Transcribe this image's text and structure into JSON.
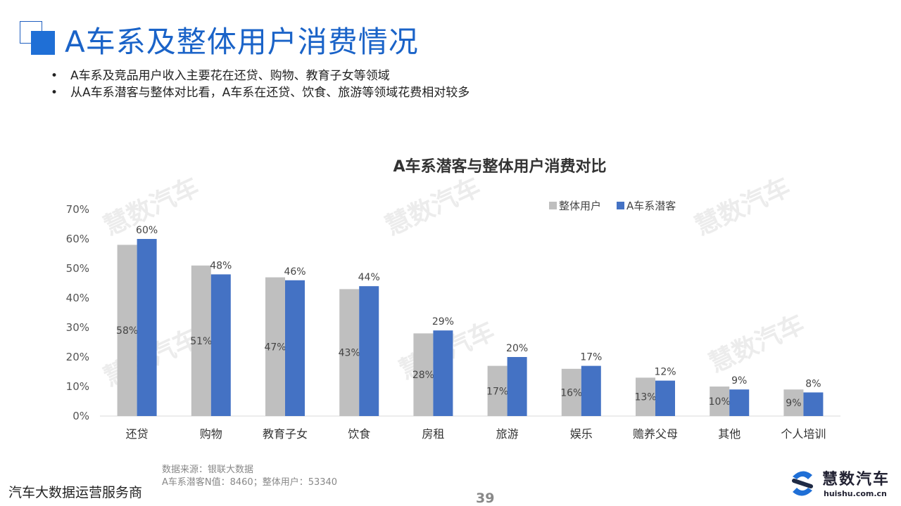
{
  "header": {
    "title": "A车系及整体用户消费情况"
  },
  "bullets": [
    "A车系及竞品用户收入主要花在还贷、购物、教育子女等领域",
    "从A车系潜客与整体对比看，A车系在还贷、饮食、旅游等领域花费相对较多"
  ],
  "bullet_symbol": "•",
  "watermark_text": "慧数汽车",
  "chart_data": {
    "type": "bar",
    "title": "A车系潜客与整体用户消费对比",
    "categories": [
      "还贷",
      "购物",
      "教育子女",
      "饮食",
      "房租",
      "旅游",
      "娱乐",
      "赡养父母",
      "其他",
      "个人培训"
    ],
    "series": [
      {
        "name": "整体用户",
        "values": [
          58,
          51,
          47,
          43,
          28,
          17,
          16,
          13,
          10,
          9
        ],
        "color": "#bfbfbf",
        "label_position": "inside"
      },
      {
        "name": "A车系潜客",
        "values": [
          60,
          48,
          46,
          44,
          29,
          20,
          17,
          12,
          9,
          8
        ],
        "color": "#4472c4",
        "label_position": "top"
      }
    ],
    "ylim": [
      0,
      70
    ],
    "yticks": [
      "0%",
      "10%",
      "20%",
      "30%",
      "40%",
      "50%",
      "60%",
      "70%"
    ],
    "value_suffix": "%",
    "legend_position": "top-right",
    "grid": false
  },
  "source": {
    "line1": "数据来源：银联大数据",
    "line2": "A车系潜客N值：8460；整体用户：53340"
  },
  "footer": {
    "left_text": "汽车大数据运营服务商",
    "page_number": "39"
  },
  "logo": {
    "name": "慧数汽车",
    "url": "huishu.com.cn",
    "color": "#1f6fd6"
  },
  "colors": {
    "accent": "#1a63c8"
  }
}
